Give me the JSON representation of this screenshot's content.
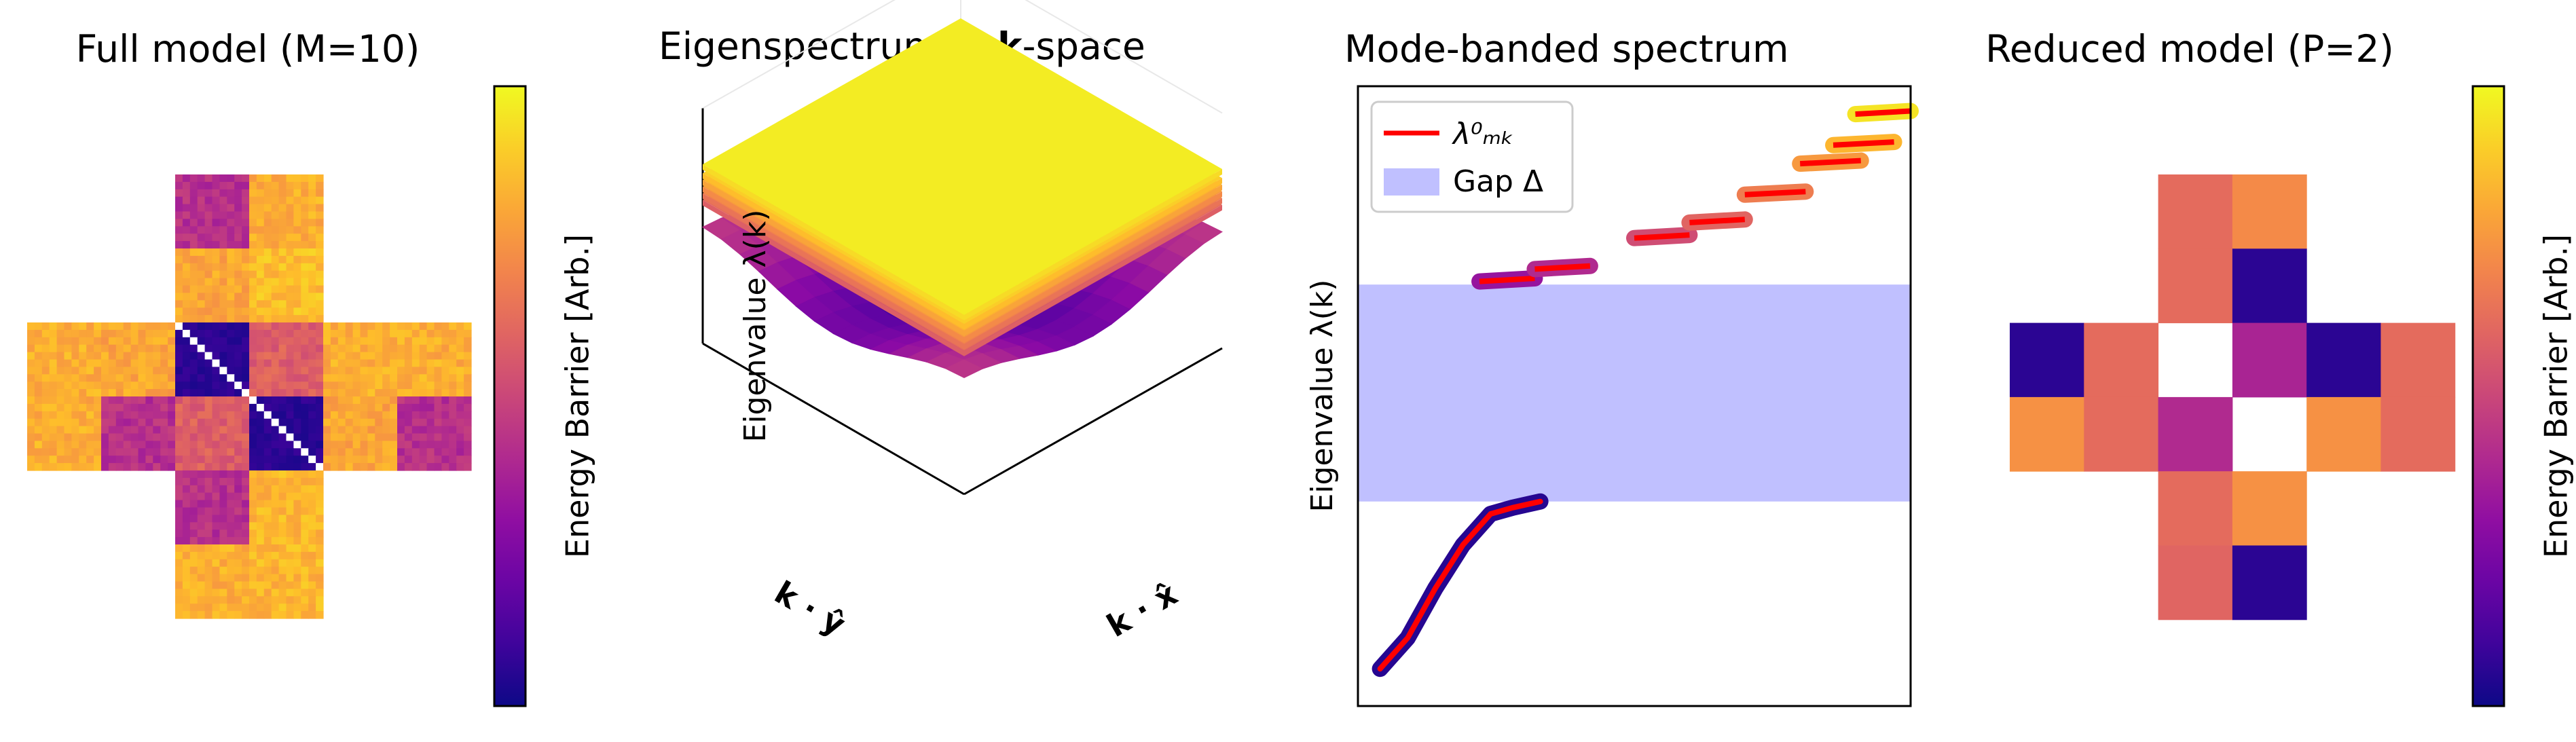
{
  "panels": {
    "full": {
      "title": "Full model (M=10)",
      "colorbar_label": "Energy Barrier [Arb.]"
    },
    "spectrum3d": {
      "title_pre": "Eigenspectrum in ",
      "title_bold": "k",
      "title_post": "-space",
      "zlabel": "Eigenvalue λ(k)",
      "xlabel": "k · x̂",
      "ylabel": "k · ŷ"
    },
    "banded": {
      "title": "Mode-banded spectrum",
      "ylabel": "Eigenvalue λ(k)",
      "legend_line": "λ⁰ₘₖ",
      "legend_gap": "Gap Δ"
    },
    "reduced": {
      "title": "Reduced model (P=2)",
      "colorbar_label": "Energy Barrier [Arb.]"
    }
  },
  "colors": {
    "colormap": "plasma",
    "line": "#ff0000",
    "gap": "#c0c0ff",
    "grid_blank": "#ffffff"
  },
  "chart_data": [
    {
      "type": "heatmap",
      "title": "Full model (M=10)",
      "shape": "cross-shaped 60x60 grid of 6x6 blocks of 10x10 cells; diagonal blanks",
      "colorbar": {
        "label": "Energy Barrier [Arb.]",
        "range": [
          0,
          1
        ]
      },
      "block_grid": [
        [
          null,
          null,
          0.42,
          0.82,
          null,
          null
        ],
        [
          null,
          null,
          0.8,
          0.86,
          null,
          null
        ],
        [
          0.82,
          0.8,
          0.06,
          0.58,
          0.82,
          0.82
        ],
        [
          0.82,
          0.42,
          0.58,
          0.06,
          0.8,
          0.42
        ],
        [
          null,
          null,
          0.42,
          0.84,
          null,
          null
        ],
        [
          null,
          null,
          0.82,
          0.84,
          null,
          null
        ]
      ]
    },
    {
      "type": "surface3d",
      "title": "Eigenspectrum in k-space",
      "zlabel": "Eigenvalue λ(k)",
      "xlabel": "k · x̂",
      "ylabel": "k · ŷ",
      "bands": [
        {
          "name": "lower band",
          "shape": "cosine well, minimum at center"
        },
        {
          "name": "upper band stack",
          "count": 6,
          "shape": "flat sheets"
        }
      ]
    },
    {
      "type": "line",
      "title": "Mode-banded spectrum",
      "ylabel": "Eigenvalue λ(k)",
      "legend": [
        "λ⁰ₘₖ",
        "Gap Δ"
      ],
      "gap": [
        0.33,
        0.68
      ],
      "ylim": [
        0,
        1
      ],
      "xlim": [
        0,
        1
      ],
      "lower_band": {
        "x": [
          0.04,
          0.09,
          0.14,
          0.19,
          0.24,
          0.28,
          0.33
        ],
        "y": [
          0.06,
          0.11,
          0.19,
          0.26,
          0.31,
          0.32,
          0.33
        ],
        "color_t": 0.0
      },
      "upper_segments": [
        {
          "x": [
            0.22,
            0.32
          ],
          "y": [
            0.685,
            0.69
          ],
          "color_t": 0.32
        },
        {
          "x": [
            0.32,
            0.42
          ],
          "y": [
            0.705,
            0.71
          ],
          "color_t": 0.4
        },
        {
          "x": [
            0.5,
            0.6
          ],
          "y": [
            0.755,
            0.76
          ],
          "color_t": 0.52
        },
        {
          "x": [
            0.6,
            0.7
          ],
          "y": [
            0.78,
            0.785
          ],
          "color_t": 0.6
        },
        {
          "x": [
            0.7,
            0.81
          ],
          "y": [
            0.825,
            0.83
          ],
          "color_t": 0.68
        },
        {
          "x": [
            0.8,
            0.91
          ],
          "y": [
            0.875,
            0.88
          ],
          "color_t": 0.76
        },
        {
          "x": [
            0.86,
            0.97
          ],
          "y": [
            0.905,
            0.91
          ],
          "color_t": 0.84
        },
        {
          "x": [
            0.9,
            1.0
          ],
          "y": [
            0.955,
            0.96
          ],
          "color_t": 0.95
        }
      ]
    },
    {
      "type": "heatmap",
      "title": "Reduced model (P=2)",
      "colorbar": {
        "label": "Energy Barrier [Arb.]",
        "range": [
          0,
          1
        ]
      },
      "grid": [
        [
          null,
          null,
          0.62,
          0.72,
          null,
          null
        ],
        [
          null,
          null,
          0.62,
          0.06,
          null,
          null
        ],
        [
          0.06,
          0.62,
          null,
          0.38,
          0.06,
          0.62
        ],
        [
          0.74,
          0.62,
          0.4,
          null,
          0.74,
          0.62
        ],
        [
          null,
          null,
          0.62,
          0.74,
          null,
          null
        ],
        [
          null,
          null,
          0.6,
          0.06,
          null,
          null
        ]
      ]
    }
  ]
}
